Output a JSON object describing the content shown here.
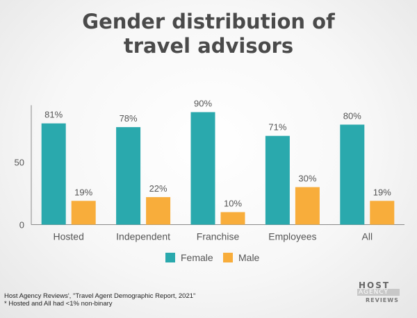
{
  "chart_data": {
    "type": "bar",
    "title_lines": [
      "Gender distribution of",
      "travel advisors"
    ],
    "categories": [
      "Hosted",
      "Independent",
      "Franchise",
      "Employees",
      "All"
    ],
    "series": [
      {
        "name": "Female",
        "color": "#2aa9ad",
        "values": [
          81,
          78,
          90,
          71,
          80
        ],
        "labels": [
          "81%",
          "78%",
          "90%",
          "71%",
          "80%"
        ]
      },
      {
        "name": "Male",
        "color": "#f8ad3b",
        "values": [
          19,
          22,
          10,
          30,
          19
        ],
        "labels": [
          "19%",
          "22%",
          "10%",
          "30%",
          "19%"
        ]
      }
    ],
    "y_ticks": [
      0,
      50
    ],
    "ylim": [
      0,
      100
    ],
    "grid": false,
    "legend_position": "bottom"
  },
  "footer": {
    "source": "Host Agency Reviews', \"Travel Agent Demographic Report, 2021\"",
    "note": "* Hosted and All had <1% non-binary"
  },
  "logo": {
    "line1": "HOST",
    "line2": "AGENCY",
    "line3": "REVIEWS"
  }
}
